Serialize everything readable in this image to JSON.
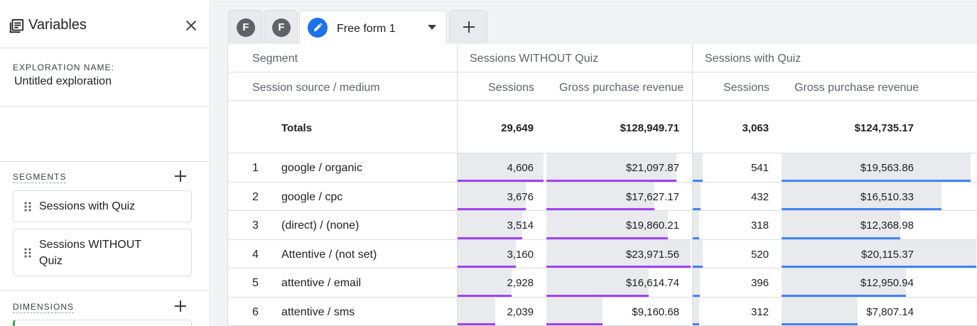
{
  "left": {
    "title": "Variables",
    "exploration_label": "EXPLORATION NAME:",
    "exploration_name": "Untitled exploration",
    "segments_label": "SEGMENTS",
    "segments": [
      "Sessions with Quiz",
      "Sessions WITHOUT Quiz"
    ],
    "dimensions_label": "DIMENSIONS"
  },
  "tabs": {
    "tab1_initial": "F",
    "tab2_initial": "F",
    "active_label": "Free form 1"
  },
  "table": {
    "segment_header": "Segment",
    "dimension_header": "Session source / medium",
    "groups": [
      {
        "name": "Sessions WITHOUT Quiz",
        "metrics": [
          "Sessions",
          "Gross purchase revenue"
        ],
        "color": "#a142f4"
      },
      {
        "name": "Sessions with Quiz",
        "metrics": [
          "Sessions",
          "Gross purchase revenue"
        ],
        "color": "#4285f4"
      }
    ],
    "totals_label": "Totals",
    "totals": [
      "29,649",
      "$128,949.71",
      "3,063",
      "$124,735.17"
    ],
    "rows": [
      {
        "idx": "1",
        "label": "google / organic",
        "v": [
          "4,606",
          "$21,097.87",
          "541",
          "$19,563.86"
        ],
        "f": [
          0.98,
          0.9,
          0.11,
          0.97
        ]
      },
      {
        "idx": "2",
        "label": "google / cpc",
        "v": [
          "3,676",
          "$17,627.17",
          "432",
          "$16,510.33"
        ],
        "f": [
          0.78,
          0.75,
          0.09,
          0.82
        ]
      },
      {
        "idx": "3",
        "label": "(direct) / (none)",
        "v": [
          "3,514",
          "$19,860.21",
          "318",
          "$12,368.98"
        ],
        "f": [
          0.74,
          0.84,
          0.07,
          0.61
        ]
      },
      {
        "idx": "4",
        "label": "Attentive / (not set)",
        "v": [
          "3,160",
          "$23,971.56",
          "520",
          "$20,115.37"
        ],
        "f": [
          0.67,
          1.0,
          0.11,
          1.0
        ]
      },
      {
        "idx": "5",
        "label": "attentive / email",
        "v": [
          "2,928",
          "$16,614.74",
          "396",
          "$12,950.94"
        ],
        "f": [
          0.62,
          0.71,
          0.08,
          0.64
        ]
      },
      {
        "idx": "6",
        "label": "attentive / sms",
        "v": [
          "2,039",
          "$9,160.68",
          "312",
          "$7,807.14"
        ],
        "f": [
          0.43,
          0.39,
          0.07,
          0.39
        ]
      }
    ]
  }
}
